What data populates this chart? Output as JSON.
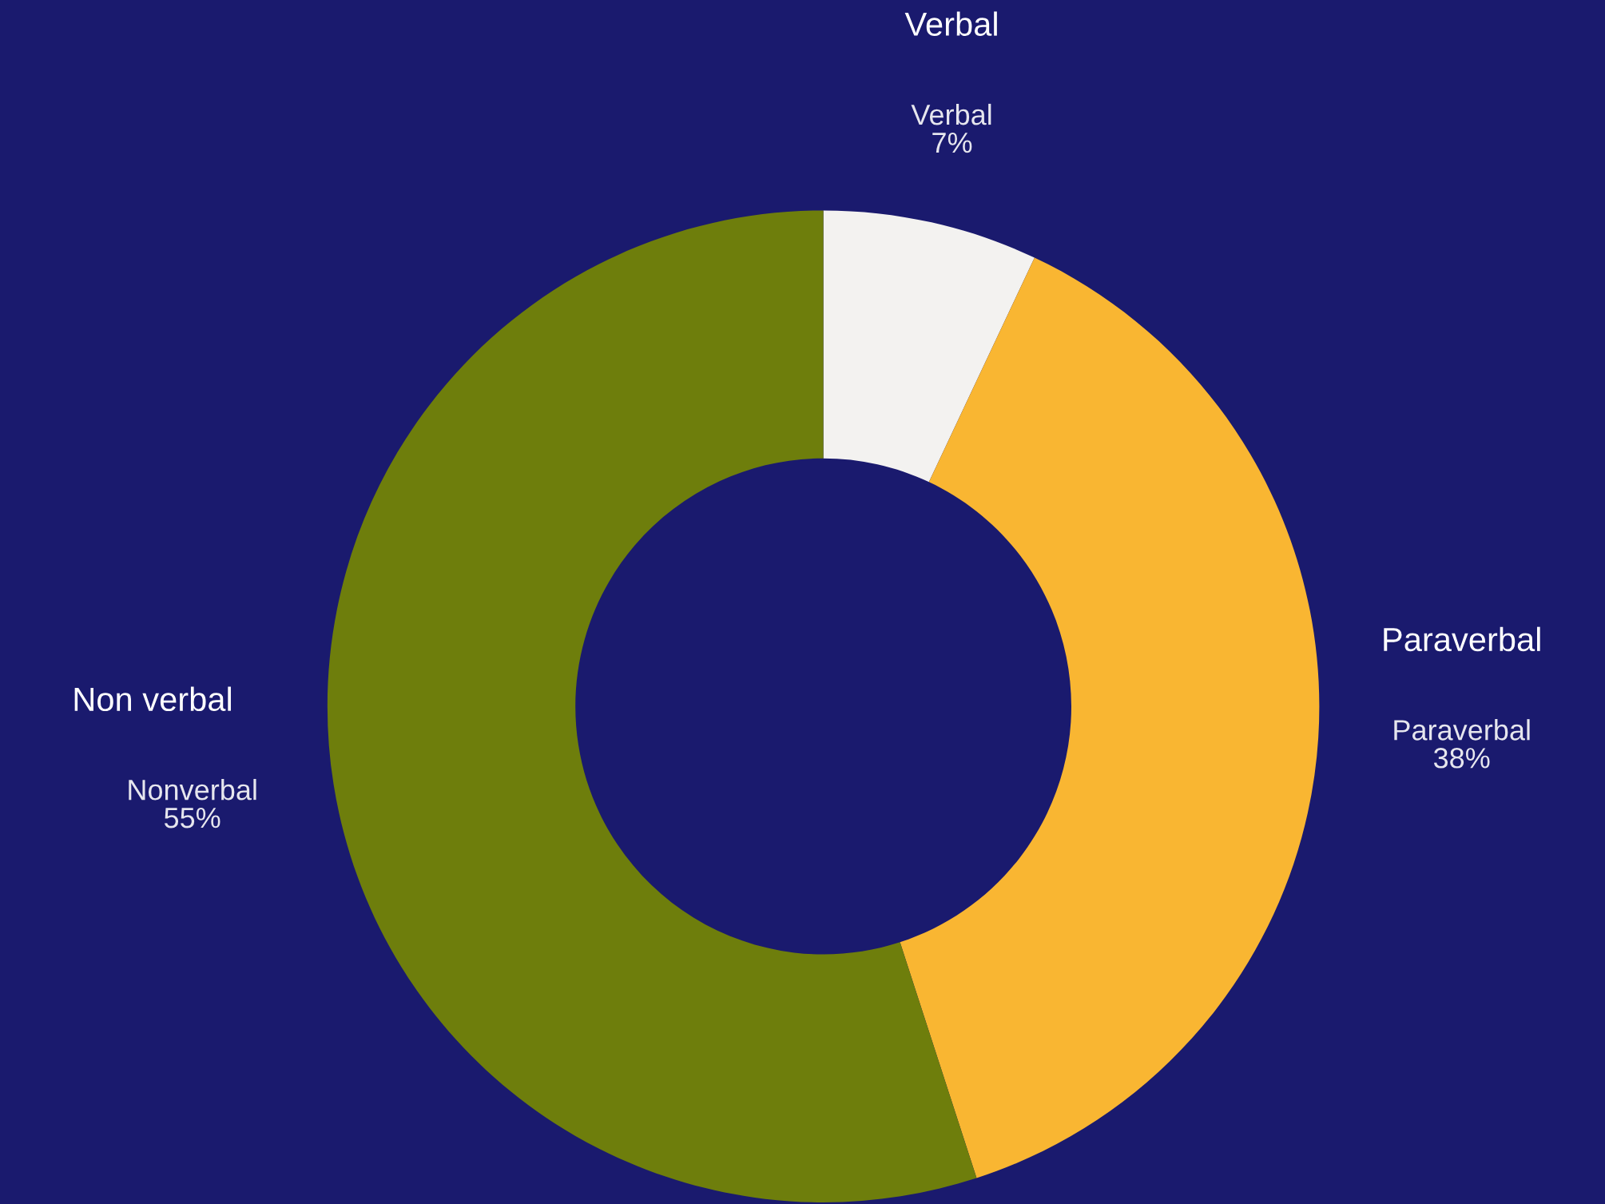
{
  "chart_data": {
    "type": "donut",
    "categories": [
      "Verbal",
      "Paraverbal",
      "Nonverbal"
    ],
    "values": [
      7,
      38,
      55
    ],
    "colors": [
      "#f3f2f0",
      "#f9b632",
      "#6e7e0c"
    ],
    "value_labels": [
      "7%",
      "38%",
      "55%"
    ],
    "annotations": [
      "Verbal",
      "Paraverbal",
      "Non verbal"
    ]
  }
}
